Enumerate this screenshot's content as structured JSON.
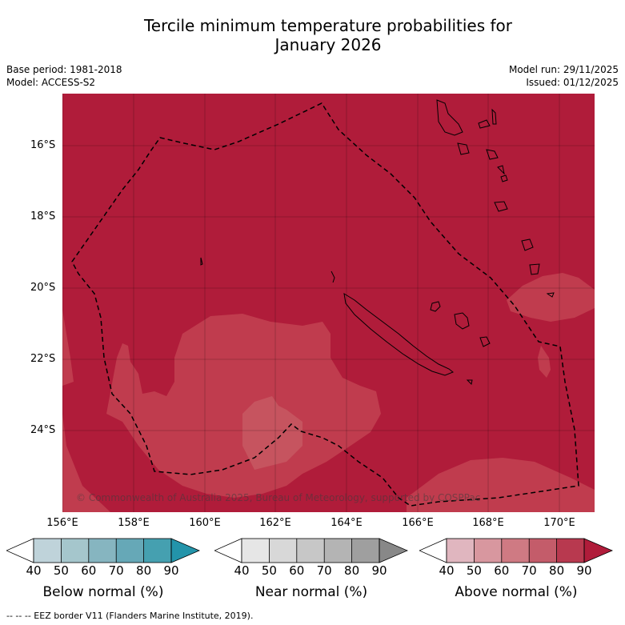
{
  "title_line1": "Tercile minimum temperature probabilities for",
  "title_line2": "January 2026",
  "meta": {
    "base_period": "Base period: 1981-2018",
    "model": "Model: ACCESS-S2",
    "model_run": "Model run: 29/11/2025",
    "issued": "Issued: 01/12/2025"
  },
  "map": {
    "lat_labels": [
      "16°S",
      "18°S",
      "20°S",
      "22°S",
      "24°S"
    ],
    "lon_labels": [
      "156°E",
      "158°E",
      "160°E",
      "162°E",
      "164°E",
      "166°E",
      "168°E",
      "170°E"
    ],
    "copyright": "© Commonwealth of Australia 2025, Bureau of Meteorology, supported by COSPPac"
  },
  "legends": [
    {
      "title": "Below normal (%)",
      "ticks": [
        "40",
        "50",
        "60",
        "70",
        "80",
        "90"
      ],
      "colors": [
        "#ffffff",
        "#bfd3da",
        "#a5c6cc",
        "#86b5c0",
        "#66a8b7",
        "#45a0b0",
        "#2394aa"
      ]
    },
    {
      "title": "Near normal (%)",
      "ticks": [
        "40",
        "50",
        "60",
        "70",
        "80",
        "90"
      ],
      "colors": [
        "#ffffff",
        "#e6e6e6",
        "#d8d8d8",
        "#c7c7c7",
        "#b4b4b4",
        "#9f9f9f",
        "#888888"
      ]
    },
    {
      "title": "Above normal (%)",
      "ticks": [
        "40",
        "50",
        "60",
        "70",
        "80",
        "90"
      ],
      "colors": [
        "#ffffff",
        "#e0b6bf",
        "#d8979f",
        "#cf7a83",
        "#c45c6a",
        "#b8394f",
        "#b01c3a"
      ]
    }
  ],
  "footnote": "--  --  -- EEZ border V11 (Flanders Marine Institute, 2019).",
  "colors": {
    "above_80_90": "#b01c3a",
    "above_70_80": "#c03c4e",
    "above_60_70": "#c6545f"
  }
}
